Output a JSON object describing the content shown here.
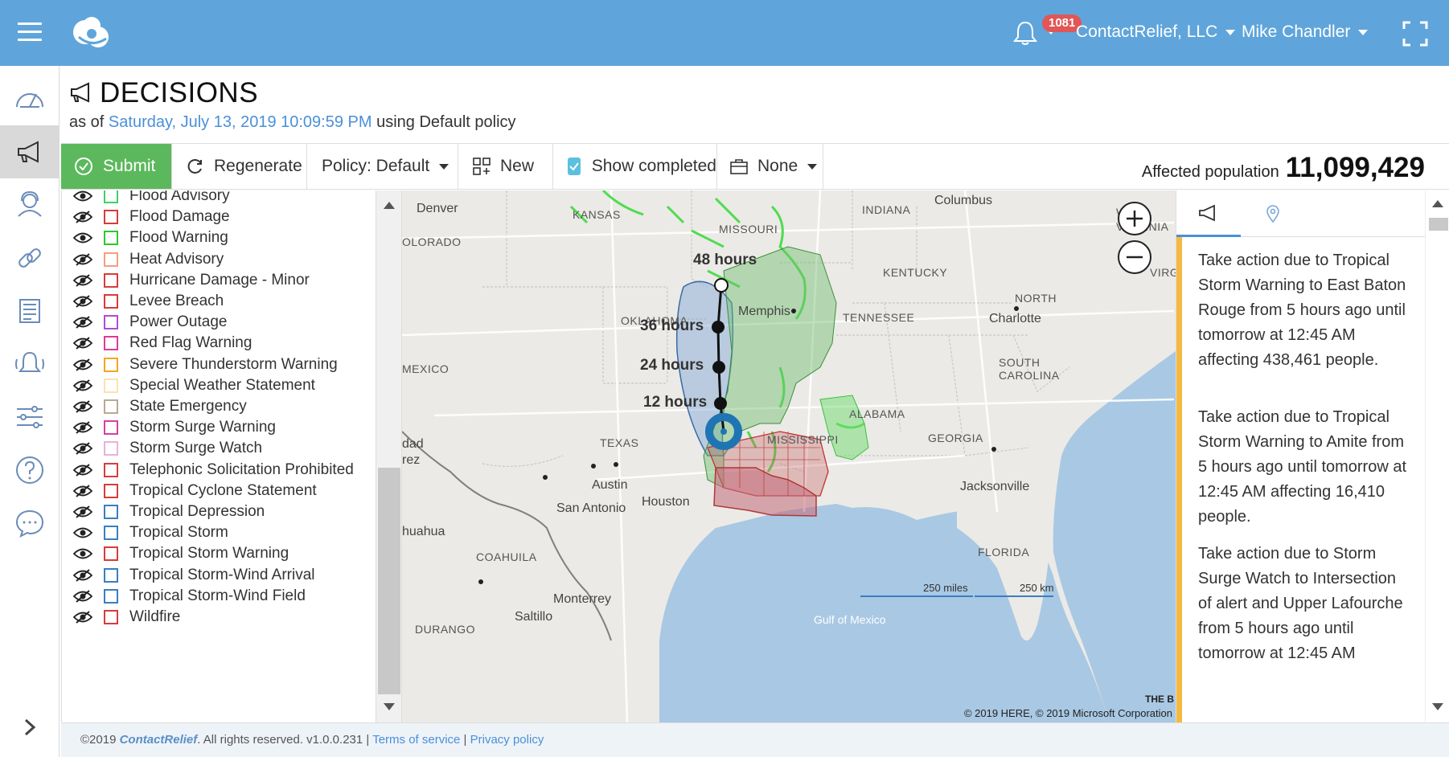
{
  "topbar": {
    "notification_count": "1081",
    "company": "ContactRelief, LLC",
    "user": "Mike Chandler",
    "accent": "#5fa5db"
  },
  "nav": {
    "icons": [
      "dashboard-icon",
      "megaphone-icon",
      "contacts-icon",
      "link-icon",
      "report-icon",
      "alerts-icon",
      "settings-sliders-icon",
      "help-icon",
      "chat-icon"
    ],
    "active": "megaphone-icon"
  },
  "header": {
    "title": "DECISIONS",
    "as_of_prefix": "as of ",
    "date": "Saturday, July 13, 2019 10:09:59 PM",
    "policy_suffix": " using Default policy"
  },
  "toolbar": {
    "submit": "Submit",
    "regenerate": "Regenerate",
    "policy": "Policy: Default",
    "new": "New",
    "show_completed": "Show completed",
    "show_completed_checked": true,
    "none": "None",
    "affected_label": "Affected population",
    "affected_value": "11,099,429"
  },
  "legend": {
    "items": [
      {
        "label": "Flood Advisory",
        "color": "#3ecf6a",
        "visible": true
      },
      {
        "label": "Flood Damage",
        "color": "#d93b3b",
        "visible": false
      },
      {
        "label": "Flood Warning",
        "color": "#2ec82e",
        "visible": true
      },
      {
        "label": "Heat Advisory",
        "color": "#f0a080",
        "visible": false
      },
      {
        "label": "Hurricane Damage - Minor",
        "color": "#d93b3b",
        "visible": false
      },
      {
        "label": "Levee Breach",
        "color": "#d93b3b",
        "visible": false
      },
      {
        "label": "Power Outage",
        "color": "#b04ad8",
        "visible": false
      },
      {
        "label": "Red Flag Warning",
        "color": "#e0389a",
        "visible": false
      },
      {
        "label": "Severe Thunderstorm Warning",
        "color": "#f5a623",
        "visible": false
      },
      {
        "label": "Special Weather Statement",
        "color": "#f9e3b0",
        "visible": false
      },
      {
        "label": "State Emergency",
        "color": "#b8ab90",
        "visible": false
      },
      {
        "label": "Storm Surge Warning",
        "color": "#d63fa0",
        "visible": false
      },
      {
        "label": "Storm Surge Watch",
        "color": "#e6b3d6",
        "visible": false
      },
      {
        "label": "Telephonic Solicitation Prohibited",
        "color": "#d93b3b",
        "visible": false
      },
      {
        "label": "Tropical Cyclone Statement",
        "color": "#d93b3b",
        "visible": false
      },
      {
        "label": "Tropical Depression",
        "color": "#3a7ec0",
        "visible": false
      },
      {
        "label": "Tropical Storm",
        "color": "#3a7ec0",
        "visible": true
      },
      {
        "label": "Tropical Storm Warning",
        "color": "#d93b3b",
        "visible": true
      },
      {
        "label": "Tropical Storm-Wind Arrival",
        "color": "#3a7ec0",
        "visible": false
      },
      {
        "label": "Tropical Storm-Wind Field",
        "color": "#3a7ec0",
        "visible": false
      },
      {
        "label": "Wildfire",
        "color": "#d93b3b",
        "visible": false
      }
    ]
  },
  "map": {
    "labels": {
      "denver": "Denver",
      "kansas": "KANSAS",
      "missouri": "MISSOURI",
      "indiana": "INDIANA",
      "columbus": "Columbus",
      "west_virginia": "WE\nVIRGINIA",
      "kentucky": "KENTUCKY",
      "virg": "VIRG",
      "colorado": "OLORADO",
      "oklahoma": "OKLAHOMA",
      "tennessee": "TENNESSEE",
      "memphis": "Memphis",
      "north": "NORTH",
      "charlotte": "Charlotte",
      "south_carolina": "SOUTH\nCAROLINA",
      "mexico": "MEXICO",
      "alabama": "ALABAMA",
      "mississippi": "MISSISSIPPI",
      "georgia": "GEORGIA",
      "texas": "TEXAS",
      "austin": "Austin",
      "houston": "Houston",
      "san_antonio": "San Antonio",
      "jacksonville": "Jacksonville",
      "florida": "FLORIDA",
      "chihuahua": "huahua",
      "coahuila": "COAHUILA",
      "monterrey": "Monterrey",
      "saltillo": "Saltillo",
      "durango": "DURANGO",
      "gulf": "Gulf of Mexico",
      "ciudad": "dad\nrez"
    },
    "forecast": [
      "48 hours",
      "36 hours",
      "24 hours",
      "12 hours"
    ],
    "scale_miles": "250 miles",
    "scale_km": "250 km",
    "copyright": "© 2019 HERE, © 2019 Microsoft Corporation",
    "brand_fragment": "THE B"
  },
  "panel": {
    "cards": [
      "Take action due to Tropical Storm Warning to East Baton Rouge from 5 hours ago until tomorrow at 12:45 AM affecting 438,461 people.",
      "Take action due to Tropical Storm Warning to Amite from 5 hours ago until tomorrow at 12:45 AM affecting 16,410 people.",
      "Take action due to Storm Surge Watch to Intersection of alert and Upper Lafourche from 5 hours ago until tomorrow at 12:45 AM"
    ]
  },
  "footer": {
    "copy": "©2019 ",
    "brand": "ContactRelief",
    "rights": ". All rights reserved. v1.0.0.231 | ",
    "terms": "Terms of service",
    "sep": " | ",
    "privacy": "Privacy policy"
  }
}
